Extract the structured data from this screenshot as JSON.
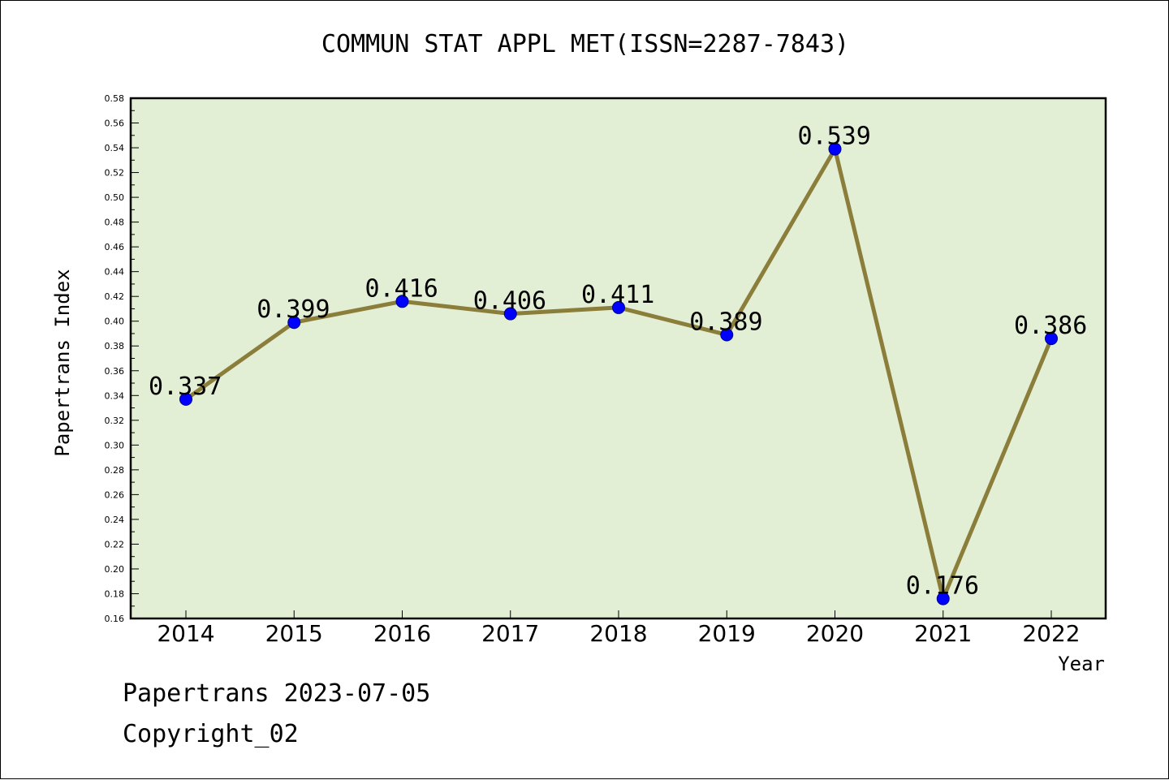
{
  "chart_data": {
    "type": "line",
    "title": "COMMUN STAT APPL MET(ISSN=2287-7843)",
    "xlabel": "Year",
    "ylabel": "Papertrans Index",
    "categories": [
      "2014",
      "2015",
      "2016",
      "2017",
      "2018",
      "2019",
      "2020",
      "2021",
      "2022"
    ],
    "series": [
      {
        "values": [
          0.337,
          0.399,
          0.416,
          0.406,
          0.411,
          0.389,
          0.539,
          0.176,
          0.386
        ],
        "labels": [
          "0.337",
          "0.399",
          "0.416",
          "0.406",
          "0.411",
          "0.389",
          "0.539",
          "0.176",
          "0.386"
        ]
      }
    ],
    "ylim": [
      0.16,
      0.58
    ],
    "yticks": [
      "0.16",
      "0.18",
      "0.20",
      "0.22",
      "0.24",
      "0.26",
      "0.28",
      "0.30",
      "0.32",
      "0.34",
      "0.36",
      "0.38",
      "0.40",
      "0.42",
      "0.44",
      "0.46",
      "0.48",
      "0.50",
      "0.52",
      "0.54",
      "0.56",
      "0.58"
    ],
    "grid": false,
    "legend": "none",
    "colors": {
      "plot_background": "#e2efd4",
      "line": "#8b7d3a",
      "marker": "#0000ff"
    }
  },
  "footer": {
    "date_line": "Papertrans 2023-07-05",
    "copyright_line": "Copyright_02"
  }
}
